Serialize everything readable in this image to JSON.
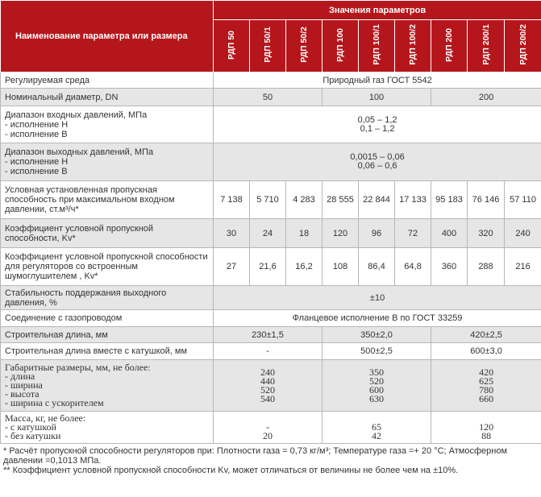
{
  "header": {
    "name_col": "Наименование параметра или размера",
    "values_title": "Значения параметров",
    "models": [
      "РДП 50",
      "РДП 50/1",
      "РДП 50/2",
      "РДП 100",
      "РДП 100/1",
      "РДП 100/2",
      "РДП 200",
      "РДП 200/1",
      "РДП 200/2"
    ]
  },
  "rows": {
    "medium": {
      "name": "Регулируемая среда",
      "value": "Природный газ ГОСТ 5542"
    },
    "dn": {
      "name": "Номинальный диаметр, DN",
      "values": [
        "50",
        "100",
        "200"
      ]
    },
    "inlet": {
      "name": "Диапазон входных давлений, МПа\n- исполнение Н\n- исполнение В",
      "value": "0,05 – 1,2\n0,1 – 1,2"
    },
    "outlet": {
      "name": "Диапазон выходных давлений, МПа\n- исполнение Н\n- исполнение В",
      "value": "0,0015 – 0,06\n0,06 – 0,6"
    },
    "capacity": {
      "name": "Условная установленная пропускная способность при максимальном входном давлении, ст.м³/ч*",
      "values": [
        "7 138",
        "5 710",
        "4 283",
        "28 555",
        "22 844",
        "17 133",
        "95 183",
        "76 146",
        "57 110"
      ]
    },
    "kv": {
      "name": "Коэффициент условной пропускной способности, Kv*",
      "values": [
        "30",
        "24",
        "18",
        "120",
        "96",
        "72",
        "400",
        "320",
        "240"
      ]
    },
    "kv_silencer": {
      "name": "Коэффициент условной пропускной способности для регуляторов со встроенным шумоглушителем , Kv*",
      "values": [
        "27",
        "21,6",
        "16,2",
        "108",
        "86,4",
        "64,8",
        "360",
        "288",
        "216"
      ]
    },
    "stability": {
      "name": "Стабильность поддержания выходного давления, %",
      "value": "±10"
    },
    "connection": {
      "name": "Соединение с газопроводом",
      "value": "Фланцевое  исполнение В по ГОСТ 33259"
    },
    "length": {
      "name": "Строительная  длина, мм",
      "values": [
        "230±1,5",
        "350±2,0",
        "420±2,5"
      ]
    },
    "length_coil": {
      "name": "Строительная длина вместе с катушкой, мм",
      "values": [
        "-",
        "500±2,5",
        "600±3,0"
      ]
    },
    "dims": {
      "name": "Габаритные размеры, мм, не более:\n- длина\n- ширина\n- высота\n- ширина с ускорителем",
      "values": [
        "240\n440\n520\n540",
        "350\n520\n600\n630",
        "420\n625\n780\n660"
      ]
    },
    "mass": {
      "name": "Масса, кг, не более:\n- с катушкой\n- без катушки",
      "values": [
        "\n-\n20",
        "\n65\n42",
        "\n120\n88"
      ]
    }
  },
  "footnotes": {
    "note1_line1": "* Расчёт пропускной способности регуляторов при: Плотности газа = 0,73 кг/м³; Температуре газа =+ 20 °C; Атмосферном",
    "note1_line2": "давлении =0,1013 МПа.",
    "note2": "** Коэффициент условной пропускной способности Kv, может отличаться от величины не более чем на ±10%."
  },
  "colors": {
    "header_bg": "#b5161c",
    "row_alt": "#e6e6e6",
    "border": "#b7b7b7"
  }
}
